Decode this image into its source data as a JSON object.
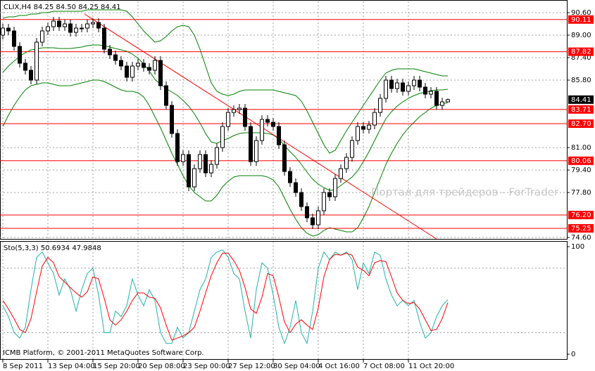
{
  "chart_data": [
    {
      "type": "candlestick",
      "title": "CLIX,H4  84.25 84.50 84.25 84.41",
      "watermark": "Портал для трейдеров - ForTrader",
      "copyright": "ICMB Platform, © 2001-2011 MetaQuotes Software Corp.",
      "ylim": [
        74.5,
        91.4
      ],
      "yticks": [
        {
          "value": 90.6,
          "label": "90.60"
        },
        {
          "value": 89.0,
          "label": "89.00"
        },
        {
          "value": 87.4,
          "label": "87.40"
        },
        {
          "value": 85.8,
          "label": "85.80"
        },
        {
          "value": 81.0,
          "label": "81.00"
        },
        {
          "value": 79.4,
          "label": "79.40"
        },
        {
          "value": 77.8,
          "label": "77.80"
        },
        {
          "value": 74.6,
          "label": "74.60"
        }
      ],
      "grid": true,
      "up_color": "#ffffff",
      "down_color": "#000000",
      "open": [
        89.0,
        89.5,
        89.3,
        88.2,
        87.0,
        86.5,
        85.8,
        88.5,
        89.3,
        89.6,
        90.0,
        89.6,
        89.8,
        89.2,
        89.5,
        89.5,
        89.8,
        89.9,
        89.5,
        88.0,
        87.6,
        87.2,
        86.8,
        86.0,
        86.8,
        87.0,
        86.7,
        86.5,
        87.2,
        85.4,
        84.0,
        82.0,
        80.0,
        80.5,
        78.2,
        79.5,
        80.5,
        79.2,
        79.8,
        81.0,
        82.5,
        83.5,
        83.7,
        83.8,
        82.5,
        80.0,
        81.5,
        83.0,
        82.8,
        82.5,
        81.2,
        79.3,
        78.5,
        77.8,
        76.8,
        76.0,
        75.5,
        76.5,
        77.8,
        77.5,
        78.8,
        79.5,
        80.3,
        81.5,
        82.5,
        82.3,
        82.6,
        83.5,
        84.5,
        85.8,
        85.2,
        85.6,
        85.0,
        85.4,
        85.8,
        85.3,
        84.8,
        85.0,
        84.0,
        84.25
      ],
      "high": [
        89.8,
        89.8,
        89.6,
        88.5,
        87.3,
        86.8,
        88.8,
        89.6,
        89.9,
        90.3,
        90.3,
        90.1,
        90.1,
        89.8,
        89.8,
        90.1,
        90.2,
        90.2,
        89.8,
        88.3,
        87.9,
        87.5,
        87.1,
        87.1,
        87.3,
        87.3,
        87.0,
        87.5,
        87.5,
        85.7,
        84.3,
        82.3,
        80.8,
        80.8,
        79.8,
        80.8,
        80.8,
        80.1,
        81.3,
        82.8,
        83.8,
        84.0,
        84.1,
        84.1,
        82.8,
        81.8,
        83.3,
        83.3,
        83.1,
        82.8,
        81.5,
        79.6,
        78.8,
        78.1,
        77.1,
        76.3,
        76.8,
        78.1,
        78.1,
        79.1,
        79.8,
        80.6,
        81.8,
        82.8,
        82.8,
        82.9,
        83.8,
        84.8,
        86.1,
        86.1,
        85.9,
        85.9,
        85.7,
        86.1,
        86.1,
        85.6,
        85.3,
        85.3,
        84.55,
        84.5
      ],
      "low": [
        88.7,
        89.0,
        87.9,
        86.7,
        86.2,
        85.5,
        85.5,
        88.2,
        89.0,
        89.3,
        89.3,
        89.3,
        88.9,
        88.9,
        89.2,
        89.2,
        89.5,
        89.2,
        87.7,
        87.3,
        86.9,
        86.5,
        85.7,
        85.7,
        86.5,
        86.4,
        86.2,
        86.2,
        85.1,
        83.7,
        81.7,
        79.7,
        79.7,
        77.9,
        77.9,
        79.2,
        78.9,
        78.9,
        79.5,
        80.7,
        82.2,
        83.2,
        83.4,
        82.2,
        79.7,
        79.7,
        81.2,
        82.5,
        82.2,
        80.9,
        79.0,
        78.2,
        77.5,
        76.5,
        75.7,
        75.2,
        75.2,
        76.2,
        77.2,
        77.2,
        78.5,
        79.2,
        80.0,
        81.2,
        82.0,
        82.0,
        82.3,
        83.2,
        84.2,
        84.9,
        84.9,
        84.7,
        84.7,
        85.1,
        85.0,
        84.5,
        84.5,
        83.7,
        83.7,
        84.25
      ],
      "close": [
        89.5,
        89.3,
        88.2,
        87.0,
        86.5,
        85.8,
        88.5,
        89.3,
        89.6,
        90.0,
        89.6,
        89.8,
        89.2,
        89.5,
        89.5,
        89.8,
        89.9,
        89.5,
        88.0,
        87.6,
        87.2,
        86.8,
        86.0,
        86.8,
        87.0,
        86.7,
        86.5,
        87.2,
        85.4,
        84.0,
        82.0,
        80.0,
        80.5,
        78.2,
        79.5,
        80.5,
        79.2,
        79.8,
        81.0,
        82.5,
        83.5,
        83.7,
        83.8,
        82.5,
        80.0,
        81.5,
        83.0,
        82.8,
        82.5,
        81.2,
        79.3,
        78.5,
        77.8,
        76.8,
        76.0,
        75.5,
        76.5,
        77.8,
        77.5,
        78.8,
        79.5,
        80.3,
        81.5,
        82.5,
        82.3,
        82.6,
        83.5,
        84.5,
        85.8,
        85.2,
        85.6,
        85.0,
        85.4,
        85.8,
        85.3,
        84.8,
        85.0,
        84.0,
        84.25,
        84.41
      ],
      "bollinger": {
        "color": "#008000",
        "upper": [
          90.2,
          90.3,
          90.3,
          90.4,
          90.4,
          90.5,
          90.5,
          90.6,
          90.6,
          90.7,
          90.7,
          90.7,
          90.7,
          90.7,
          90.7,
          90.8,
          90.8,
          90.8,
          90.8,
          90.8,
          90.8,
          90.8,
          90.7,
          90.3,
          89.8,
          89.3,
          88.9,
          88.5,
          88.6,
          88.9,
          89.3,
          89.6,
          89.7,
          89.6,
          89.0,
          88.0,
          86.8,
          85.6,
          85.0,
          84.8,
          84.7,
          84.8,
          85.0,
          85.1,
          85.1,
          85.1,
          85.1,
          85.1,
          85.1,
          85.0,
          84.9,
          84.8,
          84.7,
          84.3,
          83.6,
          82.8,
          82.0,
          81.2,
          80.6,
          80.8,
          81.5,
          82.2,
          82.8,
          83.4,
          84.0,
          84.6,
          85.2,
          85.8,
          86.3,
          86.5,
          86.6,
          86.6,
          86.6,
          86.6,
          86.5,
          86.4,
          86.3,
          86.2,
          86.1,
          86.1
        ],
        "middle": [
          86.35,
          86.8,
          87.15,
          87.5,
          87.75,
          87.95,
          88.0,
          88.1,
          88.1,
          88.1,
          88.05,
          88.05,
          88.05,
          88.1,
          88.15,
          88.25,
          88.3,
          88.3,
          88.25,
          88.15,
          88.05,
          87.95,
          87.85,
          87.65,
          87.35,
          86.95,
          86.45,
          85.85,
          85.5,
          85.2,
          84.95,
          84.7,
          84.35,
          83.95,
          83.4,
          82.75,
          82.0,
          81.4,
          81.3,
          81.5,
          81.65,
          81.85,
          82.0,
          82.05,
          82.05,
          82.05,
          82.05,
          82.0,
          81.9,
          81.6,
          81.15,
          80.7,
          80.3,
          79.8,
          79.25,
          78.75,
          78.4,
          78.15,
          77.95,
          78.0,
          78.3,
          78.6,
          78.9,
          79.35,
          80.0,
          80.7,
          81.5,
          82.3,
          83.05,
          83.55,
          83.95,
          84.25,
          84.5,
          84.7,
          84.85,
          84.95,
          85.05,
          85.1,
          85.1,
          85.15
        ],
        "lower": [
          82.5,
          83.3,
          84.0,
          84.6,
          85.1,
          85.4,
          85.5,
          85.6,
          85.6,
          85.5,
          85.4,
          85.4,
          85.4,
          85.5,
          85.6,
          85.7,
          85.8,
          85.8,
          85.7,
          85.5,
          85.3,
          85.1,
          85.0,
          85.0,
          84.9,
          84.6,
          84.0,
          83.2,
          82.4,
          81.5,
          80.6,
          79.8,
          79.0,
          78.3,
          77.8,
          77.5,
          77.2,
          77.2,
          77.6,
          78.2,
          78.6,
          78.9,
          79.0,
          79.0,
          79.0,
          79.0,
          79.0,
          78.9,
          78.7,
          78.2,
          77.4,
          76.6,
          75.9,
          75.3,
          74.9,
          74.7,
          74.8,
          75.1,
          75.3,
          75.2,
          75.1,
          75.0,
          75.0,
          75.3,
          76.0,
          76.8,
          77.8,
          78.8,
          79.8,
          80.6,
          81.3,
          81.9,
          82.4,
          82.8,
          83.2,
          83.5,
          83.8,
          84.0,
          84.1,
          84.2
        ]
      },
      "levels": [
        90.11,
        87.82,
        83.71,
        {
          "value": 82.7,
          "label": "82.70"
        },
        80.06,
        {
          "value": 76.2,
          "label": "76.20"
        },
        75.25
      ],
      "level_color": "#ff0000",
      "current_price": 84.41,
      "trendline": {
        "x": [
          14.5,
          77
        ],
        "y": [
          90.5,
          74.5
        ],
        "color": "#ff0000"
      }
    },
    {
      "type": "line",
      "title": "Sto(5,3,3) 50.6934 47.9848",
      "categories": [
        "8 Sep 2011",
        null,
        null,
        null,
        null,
        null,
        null,
        null,
        "13 Sep 04:00",
        null,
        null,
        null,
        null,
        null,
        null,
        null,
        "15 Sep 20:00",
        null,
        null,
        null,
        null,
        null,
        null,
        null,
        "20 Sep 08:00",
        null,
        null,
        null,
        null,
        null,
        null,
        null,
        "23 Sep 00:00",
        null,
        null,
        null,
        null,
        null,
        null,
        null,
        "27 Sep 12:00",
        null,
        null,
        null,
        null,
        null,
        null,
        null,
        "30 Sep 04:00",
        null,
        null,
        null,
        null,
        null,
        null,
        null,
        "4 Oct 16:00",
        null,
        null,
        null,
        null,
        null,
        null,
        null,
        "7 Oct 08:00",
        null,
        null,
        null,
        null,
        null,
        null,
        null,
        "11 Oct 20:00",
        null,
        null,
        null,
        null,
        null,
        null,
        null
      ],
      "ylim": [
        -5.2,
        104.6
      ],
      "yticks": [
        100,
        0
      ],
      "levels": [
        80,
        20
      ],
      "grid": true,
      "series": [
        {
          "color": "#20b2aa",
          "values": [
            45,
            35,
            20,
            15,
            25,
            60,
            90,
            95,
            85,
            75,
            55,
            70,
            60,
            40,
            60,
            75,
            80,
            55,
            20,
            20,
            40,
            35,
            45,
            70,
            55,
            45,
            60,
            50,
            20,
            10,
            10,
            25,
            15,
            20,
            40,
            60,
            70,
            90,
            95,
            97,
            90,
            75,
            70,
            40,
            15,
            60,
            85,
            80,
            55,
            25,
            10,
            25,
            50,
            20,
            10,
            40,
            80,
            95,
            88,
            95,
            92,
            95,
            88,
            60,
            85,
            75,
            95,
            92,
            70,
            55,
            45,
            50,
            45,
            50,
            30,
            15,
            20,
            35,
            45,
            50.6934
          ]
        },
        {
          "color": "#ff0000",
          "values": [
            50,
            42,
            33,
            23,
            20,
            33,
            58,
            82,
            90,
            85,
            72,
            67,
            62,
            57,
            53,
            58,
            72,
            70,
            52,
            32,
            27,
            32,
            40,
            50,
            57,
            57,
            53,
            52,
            43,
            27,
            13,
            15,
            17,
            20,
            25,
            40,
            57,
            73,
            85,
            94,
            94,
            87,
            78,
            62,
            42,
            38,
            53,
            75,
            73,
            53,
            30,
            20,
            28,
            32,
            27,
            23,
            43,
            72,
            88,
            93,
            92,
            94,
            92,
            81,
            78,
            73,
            85,
            87,
            86,
            72,
            57,
            50,
            47,
            48,
            42,
            32,
            22,
            23,
            33,
            47.9848
          ]
        }
      ]
    }
  ]
}
